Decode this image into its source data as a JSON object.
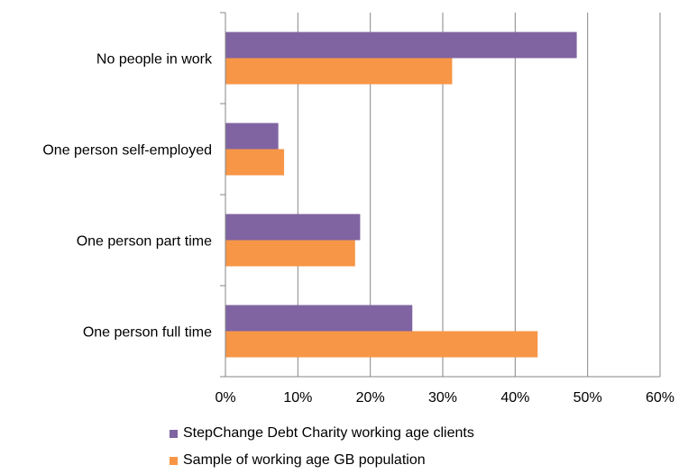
{
  "chart_data": {
    "type": "bar",
    "orientation": "horizontal",
    "categories": [
      "No people in work",
      "One person self-employed",
      "One person part time",
      "One person full time"
    ],
    "series": [
      {
        "name": "StepChange Debt Charity working age clients",
        "color": "#8064A2",
        "values": [
          48.5,
          7.3,
          18.6,
          25.8
        ]
      },
      {
        "name": "Sample of working age GB population",
        "color": "#F79646",
        "values": [
          31.3,
          8.1,
          17.9,
          43.1
        ]
      }
    ],
    "xlim": [
      0,
      60
    ],
    "xticks": [
      0,
      10,
      20,
      30,
      40,
      50,
      60
    ],
    "tick_format": "percent",
    "grid": "vertical",
    "legend": "bottom"
  }
}
